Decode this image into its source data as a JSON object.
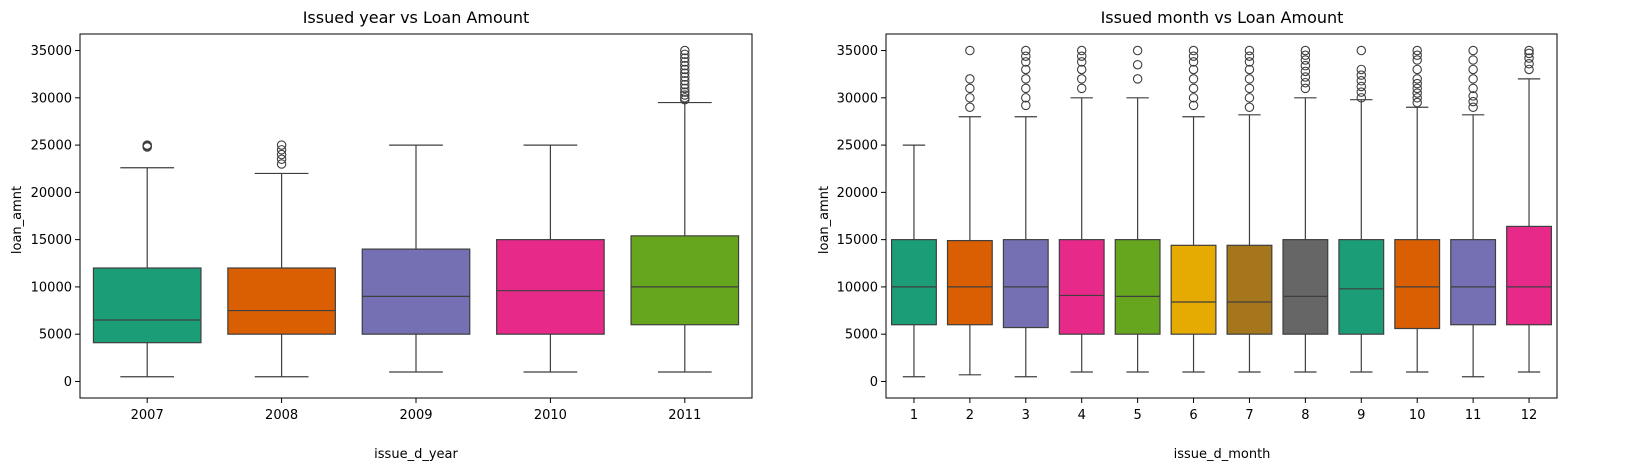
{
  "chart_data": [
    {
      "type": "boxplot",
      "title": "Issued year vs Loan Amount",
      "xlabel": "issue_d_year",
      "ylabel": "loan_amnt",
      "ylim": [
        -1750,
        36750
      ],
      "yticks": [
        0,
        5000,
        10000,
        15000,
        20000,
        25000,
        30000,
        35000
      ],
      "categories": [
        "2007",
        "2008",
        "2009",
        "2010",
        "2011"
      ],
      "boxes": [
        {
          "whislo": 500,
          "q1": 4100,
          "med": 6500,
          "q3": 12000,
          "whishi": 22600,
          "fliers": [
            24800,
            24900,
            25000
          ],
          "color": "#1b9e77"
        },
        {
          "whislo": 500,
          "q1": 5000,
          "med": 7500,
          "q3": 12000,
          "whishi": 22000,
          "fliers": [
            23000,
            23500,
            24000,
            24500,
            25000
          ],
          "color": "#d95f02"
        },
        {
          "whislo": 1000,
          "q1": 5000,
          "med": 9000,
          "q3": 14000,
          "whishi": 25000,
          "fliers": [],
          "color": "#7570b3"
        },
        {
          "whislo": 1000,
          "q1": 5000,
          "med": 9600,
          "q3": 15000,
          "whishi": 25000,
          "fliers": [],
          "color": "#e7298a"
        },
        {
          "whislo": 1000,
          "q1": 6000,
          "med": 10000,
          "q3": 15400,
          "whishi": 29500,
          "fliers": [
            29800,
            30000,
            30300,
            30600,
            31000,
            31400,
            31800,
            32200,
            32600,
            33000,
            33400,
            33800,
            34200,
            34600,
            35000
          ],
          "color": "#66a61e"
        }
      ],
      "grid": false
    },
    {
      "type": "boxplot",
      "title": "Issued month vs Loan Amount",
      "xlabel": "issue_d_month",
      "ylabel": "loan_amnt",
      "ylim": [
        -1750,
        36750
      ],
      "yticks": [
        0,
        5000,
        10000,
        15000,
        20000,
        25000,
        30000,
        35000
      ],
      "categories": [
        "1",
        "2",
        "3",
        "4",
        "5",
        "6",
        "7",
        "8",
        "9",
        "10",
        "11",
        "12"
      ],
      "boxes": [
        {
          "whislo": 500,
          "q1": 6000,
          "med": 10000,
          "q3": 15000,
          "whishi": 25000,
          "fliers": [],
          "color": "#1b9e77"
        },
        {
          "whislo": 700,
          "q1": 6000,
          "med": 10000,
          "q3": 14900,
          "whishi": 28000,
          "fliers": [
            29000,
            30000,
            31000,
            32000,
            35000
          ],
          "color": "#d95f02"
        },
        {
          "whislo": 500,
          "q1": 5700,
          "med": 10000,
          "q3": 15000,
          "whishi": 28000,
          "fliers": [
            29200,
            30000,
            31000,
            32000,
            33000,
            33800,
            34400,
            35000
          ],
          "color": "#7570b3"
        },
        {
          "whislo": 1000,
          "q1": 5000,
          "med": 9100,
          "q3": 15000,
          "whishi": 30000,
          "fliers": [
            31000,
            32000,
            33000,
            33800,
            34400,
            35000
          ],
          "color": "#e7298a"
        },
        {
          "whislo": 1000,
          "q1": 5000,
          "med": 9000,
          "q3": 15000,
          "whishi": 30000,
          "fliers": [
            32000,
            33500,
            35000
          ],
          "color": "#66a61e"
        },
        {
          "whislo": 1000,
          "q1": 5000,
          "med": 8400,
          "q3": 14400,
          "whishi": 28000,
          "fliers": [
            29200,
            30000,
            31000,
            32000,
            33000,
            33800,
            34400,
            35000
          ],
          "color": "#e6ab02"
        },
        {
          "whislo": 1000,
          "q1": 5000,
          "med": 8400,
          "q3": 14400,
          "whishi": 28200,
          "fliers": [
            29000,
            30000,
            31000,
            32000,
            33000,
            33800,
            34400,
            35000
          ],
          "color": "#a6761d"
        },
        {
          "whislo": 1000,
          "q1": 5000,
          "med": 9000,
          "q3": 15000,
          "whishi": 30000,
          "fliers": [
            31000,
            31600,
            32200,
            32800,
            33400,
            34000,
            34500,
            35000
          ],
          "color": "#666666"
        },
        {
          "whislo": 1000,
          "q1": 5000,
          "med": 9800,
          "q3": 15000,
          "whishi": 29800,
          "fliers": [
            30000,
            30600,
            31200,
            31800,
            32400,
            33000,
            35000
          ],
          "color": "#1b9e77"
        },
        {
          "whislo": 1000,
          "q1": 5600,
          "med": 10000,
          "q3": 15000,
          "whishi": 29000,
          "fliers": [
            29500,
            30000,
            30500,
            31000,
            31500,
            32000,
            33000,
            34000,
            34500,
            35000
          ],
          "color": "#d95f02"
        },
        {
          "whislo": 500,
          "q1": 6000,
          "med": 10000,
          "q3": 15000,
          "whishi": 28200,
          "fliers": [
            29000,
            29600,
            30200,
            31000,
            32000,
            33000,
            34000,
            35000
          ],
          "color": "#7570b3"
        },
        {
          "whislo": 1000,
          "q1": 6000,
          "med": 10000,
          "q3": 16400,
          "whishi": 32000,
          "fliers": [
            33000,
            33600,
            34200,
            34700,
            35000
          ],
          "color": "#e7298a"
        }
      ],
      "grid": false
    }
  ]
}
